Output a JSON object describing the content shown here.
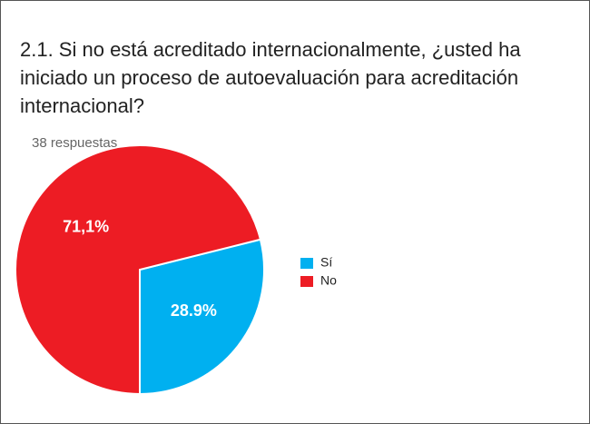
{
  "chart_data": {
    "type": "pie",
    "title": "2.1. Si no está acreditado internacionalmente, ¿usted ha iniciado un proceso de autoevaluación para acreditación internacional?",
    "subtitle": "38 respuestas",
    "categories": [
      "Sí",
      "No"
    ],
    "values": [
      28.9,
      71.1
    ],
    "value_labels": [
      "28.9%",
      "71,1%"
    ],
    "colors": [
      "#00b0f0",
      "#ed1c24"
    ]
  }
}
